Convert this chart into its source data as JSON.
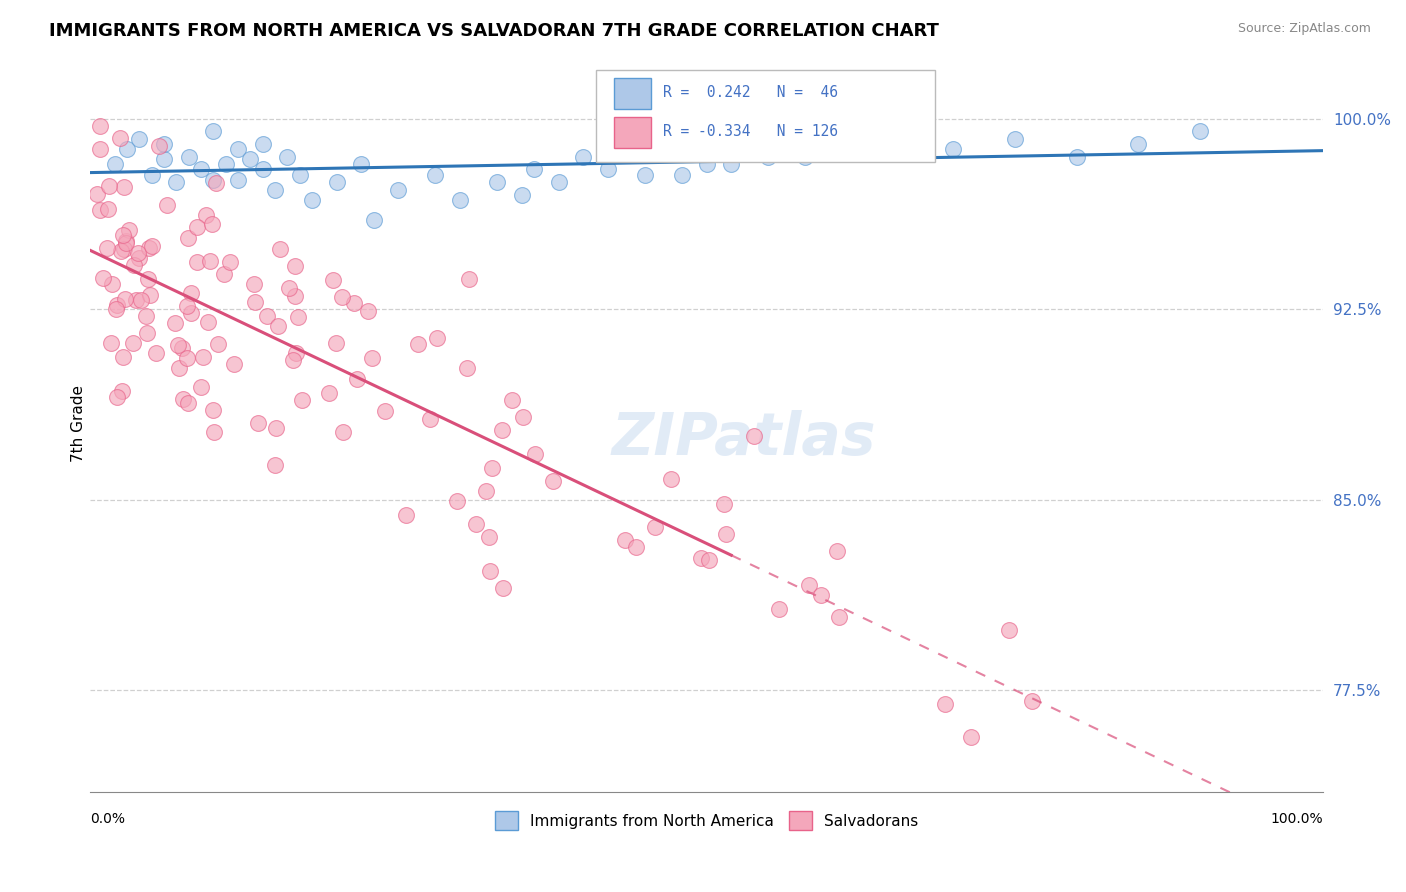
{
  "title": "IMMIGRANTS FROM NORTH AMERICA VS SALVADORAN 7TH GRADE CORRELATION CHART",
  "source": "Source: ZipAtlas.com",
  "ylabel": "7th Grade",
  "yticks": [
    0.775,
    0.85,
    0.925,
    1.0
  ],
  "ytick_labels": [
    "77.5%",
    "85.0%",
    "92.5%",
    "100.0%"
  ],
  "xlim": [
    0.0,
    1.0
  ],
  "ylim": [
    0.735,
    1.025
  ],
  "blue_R": 0.242,
  "blue_N": 46,
  "pink_R": -0.334,
  "pink_N": 126,
  "blue_color": "#aec8e8",
  "pink_color": "#f4a7bb",
  "blue_edge": "#5b9bd5",
  "pink_edge": "#e8638a",
  "trend_blue": "#2e75b6",
  "trend_pink": "#d94f7a",
  "watermark_color": "#c5d8ef",
  "legend_label_blue": "Immigrants from North America",
  "legend_label_pink": "Salvadorans",
  "ytick_color": "#4472c4",
  "grid_color": "#d0d0d0"
}
